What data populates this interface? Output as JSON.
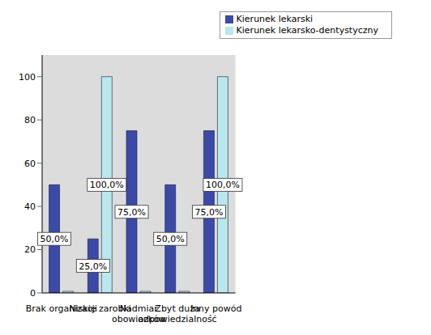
{
  "chart_data": {
    "type": "bar",
    "categories": [
      "Brak organizacji",
      "Niskie zarobki",
      "Nadmiar obowiazków",
      "Zbyt duża odpowiedzialność",
      "Inny powód"
    ],
    "series": [
      {
        "name": "Kierunek lekarski",
        "color": "#3a4aa6",
        "values": [
          50,
          25,
          75,
          50,
          75
        ],
        "value_labels": [
          "50,0%",
          "25,0%",
          "75,0%",
          "50,0%",
          "75,0%"
        ]
      },
      {
        "name": "Kierunek lekarsko-dentystyczny",
        "color": "#b8e8ec",
        "values": [
          0,
          100,
          0,
          0,
          100
        ],
        "value_labels": [
          null,
          "100,0%",
          null,
          null,
          "100,0%"
        ]
      }
    ],
    "ylim": [
      0,
      110
    ],
    "yticks": [
      0,
      20,
      40,
      60,
      80,
      100
    ],
    "grid": false,
    "legend": "upper right",
    "data_labels": true
  }
}
